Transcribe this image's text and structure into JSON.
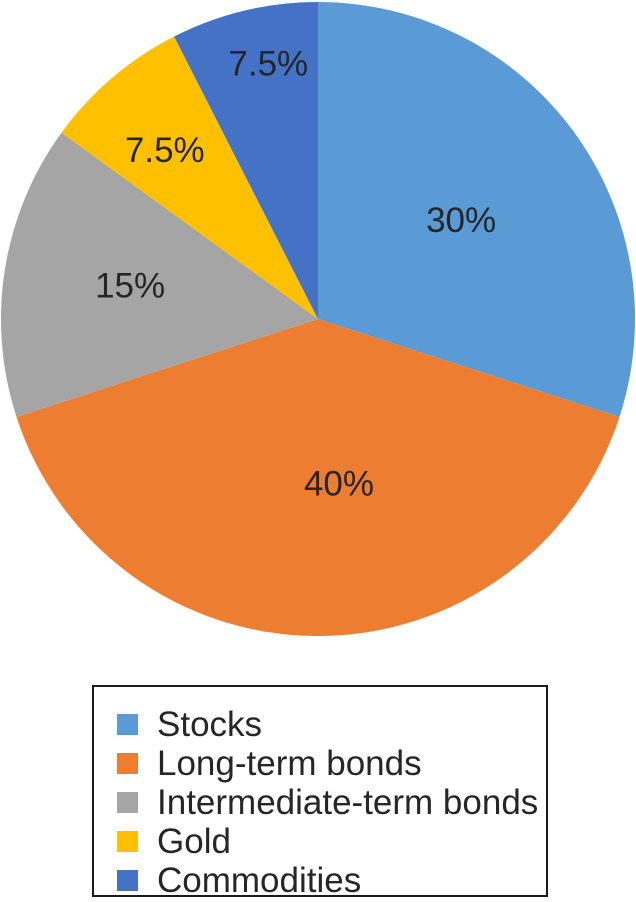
{
  "chart_data": {
    "type": "pie",
    "title": "",
    "categories": [
      "Stocks",
      "Long-term bonds",
      "Intermediate-term bonds",
      "Gold",
      "Commodities"
    ],
    "values": [
      30,
      40,
      15,
      7.5,
      7.5
    ],
    "labels": [
      "30%",
      "40%",
      "15%",
      "7.5%",
      "7.5%"
    ],
    "colors": [
      "#5B9BD5",
      "#ED7D31",
      "#A5A5A5",
      "#FFC000",
      "#4472C4"
    ],
    "start_angle_deg": 0,
    "direction": "clockwise",
    "legend_position": "bottom-center",
    "label_color": "#262626",
    "legend_border_color": "#1A1A1A",
    "background": "#FFFFFF"
  }
}
